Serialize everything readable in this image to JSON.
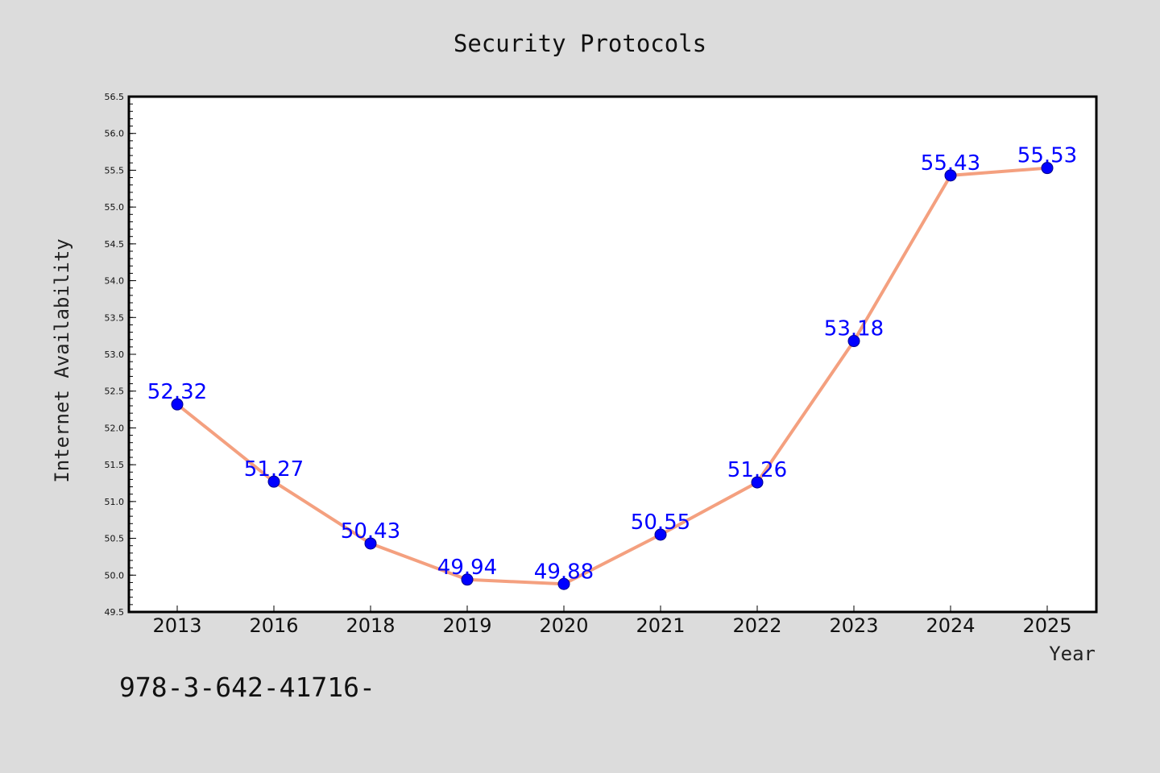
{
  "chart_data": {
    "type": "line",
    "title": "Security Protocols",
    "xlabel": "Year",
    "ylabel": "Internet Availability",
    "categories": [
      "2013",
      "2016",
      "2018",
      "2019",
      "2020",
      "2021",
      "2022",
      "2023",
      "2024",
      "2025"
    ],
    "series": [
      {
        "values": [
          52.32,
          51.27,
          50.43,
          49.94,
          49.88,
          50.55,
          51.26,
          53.18,
          55.43,
          55.53
        ],
        "data_labels": [
          "52.32",
          "51.27",
          "50.43",
          "49.94",
          "49.88",
          "50.55",
          "51.26",
          "53.18",
          "55.43",
          "55.53"
        ]
      }
    ],
    "ylim": [
      49.5,
      56.5
    ],
    "yticks": [
      "49.5",
      "50.0",
      "50.5",
      "51.0",
      "51.5",
      "52.0",
      "52.5",
      "53.0",
      "53.5",
      "54.0",
      "54.5",
      "55.0",
      "55.5",
      "56.0",
      "56.5"
    ],
    "grid": false,
    "colors": {
      "line": "#f4a07f",
      "marker": "#0000ff",
      "data_label": "#0000ff",
      "background": "#dcdcdc",
      "plot_area": "#ffffff"
    }
  },
  "footer_text": "978-3-642-41716-"
}
